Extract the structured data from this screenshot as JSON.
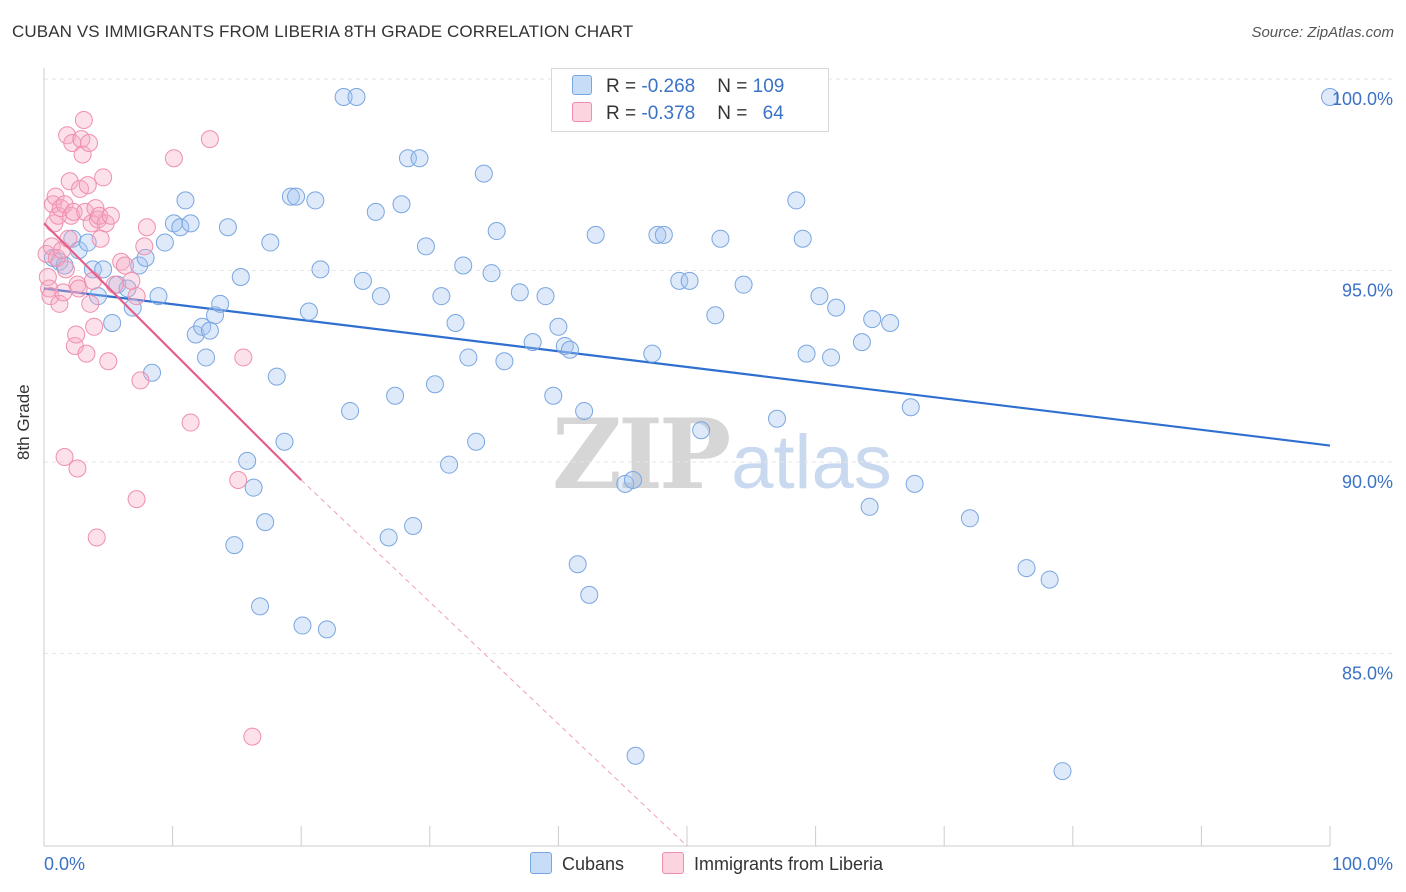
{
  "header": {
    "title": "CUBAN VS IMMIGRANTS FROM LIBERIA 8TH GRADE CORRELATION CHART",
    "source": "Source: ZipAtlas.com"
  },
  "watermark": {
    "zip": "ZIP",
    "atlas": "atlas"
  },
  "legend": {
    "rows": [
      {
        "r_label": "R = ",
        "r_value": "-0.268",
        "n_label": "N = ",
        "n_value": "109",
        "color": "#a9c7ef"
      },
      {
        "r_label": "R = ",
        "r_value": "-0.378",
        "n_label": "N = ",
        "n_value": "64",
        "color": "#f6b6c8"
      }
    ]
  },
  "bottom_legend": [
    {
      "label": "Cubans",
      "color": "#a9c7ef"
    },
    {
      "label": "Immigrants from Liberia",
      "color": "#f6b6c8"
    }
  ],
  "colors": {
    "blue_fill": "rgba(160,195,240,0.35)",
    "blue_stroke": "#7aa6e0",
    "blue_line": "#2f6fcf",
    "pink_fill": "rgba(246,170,195,0.35)",
    "pink_stroke": "#ef8fae",
    "pink_line": "#e4608c",
    "grid": "#e6e6e6",
    "tick_label": "#3b72c6"
  },
  "chart_data": {
    "type": "scatter",
    "title": "CUBAN VS IMMIGRANTS FROM LIBERIA 8TH GRADE CORRELATION CHART",
    "xlabel": "",
    "ylabel": "8th Grade",
    "xlim": [
      0,
      100
    ],
    "ylim": [
      80.5,
      101
    ],
    "x_tick_labels": [
      "0.0%",
      "100.0%"
    ],
    "y_ticks": [
      85,
      90,
      95,
      100
    ],
    "y_tick_labels": [
      "85.0%",
      "90.0%",
      "95.0%",
      "100.0%"
    ],
    "grid": true,
    "legend_position": "top-center",
    "series": [
      {
        "name": "Cubans",
        "r": -0.268,
        "n": 109,
        "trend": {
          "x": [
            0,
            100
          ],
          "y": [
            95.0,
            90.9
          ]
        },
        "points": [
          [
            0.7,
            95.8
          ],
          [
            1.2,
            95.7
          ],
          [
            1.6,
            95.6
          ],
          [
            2.2,
            96.3
          ],
          [
            2.7,
            96.0
          ],
          [
            3.4,
            96.2
          ],
          [
            3.8,
            95.5
          ],
          [
            4.2,
            94.8
          ],
          [
            4.6,
            95.5
          ],
          [
            5.3,
            94.1
          ],
          [
            5.7,
            95.1
          ],
          [
            6.5,
            95.0
          ],
          [
            6.9,
            94.5
          ],
          [
            7.4,
            95.6
          ],
          [
            7.9,
            95.8
          ],
          [
            8.4,
            92.8
          ],
          [
            8.9,
            94.8
          ],
          [
            9.4,
            96.2
          ],
          [
            10.1,
            96.7
          ],
          [
            10.6,
            96.6
          ],
          [
            11.0,
            97.3
          ],
          [
            11.4,
            96.7
          ],
          [
            11.8,
            93.8
          ],
          [
            12.3,
            94.0
          ],
          [
            12.6,
            93.2
          ],
          [
            12.9,
            93.9
          ],
          [
            13.3,
            94.3
          ],
          [
            13.7,
            94.6
          ],
          [
            14.3,
            96.6
          ],
          [
            14.8,
            88.3
          ],
          [
            15.3,
            95.3
          ],
          [
            15.8,
            90.5
          ],
          [
            16.3,
            89.8
          ],
          [
            16.8,
            86.7
          ],
          [
            17.2,
            88.9
          ],
          [
            17.6,
            96.2
          ],
          [
            18.1,
            92.7
          ],
          [
            18.7,
            91.0
          ],
          [
            19.2,
            97.4
          ],
          [
            19.6,
            97.4
          ],
          [
            20.1,
            86.2
          ],
          [
            20.6,
            94.4
          ],
          [
            21.1,
            97.3
          ],
          [
            21.5,
            95.5
          ],
          [
            22.0,
            86.1
          ],
          [
            23.3,
            100.0
          ],
          [
            23.8,
            91.8
          ],
          [
            24.3,
            100.0
          ],
          [
            24.8,
            95.2
          ],
          [
            25.8,
            97.0
          ],
          [
            26.2,
            94.8
          ],
          [
            26.8,
            88.5
          ],
          [
            27.3,
            92.2
          ],
          [
            27.8,
            97.2
          ],
          [
            28.3,
            98.4
          ],
          [
            28.7,
            88.8
          ],
          [
            29.2,
            98.4
          ],
          [
            29.7,
            96.1
          ],
          [
            30.4,
            92.5
          ],
          [
            30.9,
            94.8
          ],
          [
            31.5,
            90.4
          ],
          [
            32.0,
            94.1
          ],
          [
            32.6,
            95.6
          ],
          [
            33.0,
            93.2
          ],
          [
            33.6,
            91.0
          ],
          [
            34.2,
            98.0
          ],
          [
            34.8,
            95.4
          ],
          [
            35.2,
            96.5
          ],
          [
            35.8,
            93.1
          ],
          [
            37.0,
            94.9
          ],
          [
            38.0,
            93.6
          ],
          [
            39.0,
            94.8
          ],
          [
            39.6,
            92.2
          ],
          [
            40.0,
            94.0
          ],
          [
            40.5,
            93.5
          ],
          [
            40.9,
            93.4
          ],
          [
            41.5,
            87.8
          ],
          [
            42.0,
            91.8
          ],
          [
            42.4,
            87.0
          ],
          [
            42.9,
            96.4
          ],
          [
            45.2,
            89.9
          ],
          [
            45.8,
            90.0
          ],
          [
            46.0,
            82.8
          ],
          [
            47.3,
            93.3
          ],
          [
            47.7,
            96.4
          ],
          [
            48.2,
            96.4
          ],
          [
            49.4,
            95.2
          ],
          [
            50.2,
            95.2
          ],
          [
            51.1,
            91.3
          ],
          [
            52.2,
            94.3
          ],
          [
            52.6,
            96.3
          ],
          [
            54.4,
            95.1
          ],
          [
            57.0,
            91.6
          ],
          [
            58.5,
            97.3
          ],
          [
            59.0,
            96.3
          ],
          [
            59.3,
            93.3
          ],
          [
            60.3,
            94.8
          ],
          [
            61.2,
            93.2
          ],
          [
            61.6,
            94.5
          ],
          [
            63.6,
            93.6
          ],
          [
            64.2,
            89.3
          ],
          [
            64.4,
            94.2
          ],
          [
            65.8,
            94.1
          ],
          [
            67.4,
            91.9
          ],
          [
            67.7,
            89.9
          ],
          [
            72.0,
            89.0
          ],
          [
            76.4,
            87.7
          ],
          [
            78.2,
            87.4
          ],
          [
            79.2,
            82.4
          ],
          [
            100.0,
            100.0
          ]
        ]
      },
      {
        "name": "Immigrants from Liberia",
        "r": -0.378,
        "n": 64,
        "trend": {
          "x": [
            0,
            20
          ],
          "y": [
            96.7,
            90.0
          ]
        },
        "trend_dashed_extension": {
          "x": [
            20,
            50
          ],
          "y": [
            90.0,
            80.0
          ]
        },
        "points": [
          [
            0.2,
            95.9
          ],
          [
            0.3,
            95.3
          ],
          [
            0.4,
            95.0
          ],
          [
            0.5,
            94.8
          ],
          [
            0.6,
            96.1
          ],
          [
            0.7,
            97.2
          ],
          [
            0.8,
            96.7
          ],
          [
            0.9,
            97.4
          ],
          [
            1.0,
            95.8
          ],
          [
            1.1,
            96.9
          ],
          [
            1.2,
            94.6
          ],
          [
            1.3,
            97.1
          ],
          [
            1.4,
            96.0
          ],
          [
            1.5,
            94.9
          ],
          [
            1.6,
            97.2
          ],
          [
            1.7,
            95.5
          ],
          [
            1.8,
            99.0
          ],
          [
            1.9,
            96.3
          ],
          [
            2.0,
            97.8
          ],
          [
            2.1,
            96.9
          ],
          [
            2.2,
            98.8
          ],
          [
            2.3,
            97.0
          ],
          [
            2.4,
            93.5
          ],
          [
            2.5,
            93.8
          ],
          [
            2.6,
            95.1
          ],
          [
            2.7,
            95.0
          ],
          [
            2.8,
            97.6
          ],
          [
            2.9,
            98.9
          ],
          [
            3.0,
            98.5
          ],
          [
            3.1,
            99.4
          ],
          [
            3.2,
            97.0
          ],
          [
            3.3,
            93.3
          ],
          [
            3.4,
            97.7
          ],
          [
            3.5,
            98.8
          ],
          [
            3.6,
            94.6
          ],
          [
            3.7,
            96.7
          ],
          [
            3.8,
            95.2
          ],
          [
            3.9,
            94.0
          ],
          [
            4.0,
            97.1
          ],
          [
            4.1,
            88.5
          ],
          [
            4.2,
            96.8
          ],
          [
            4.3,
            96.9
          ],
          [
            4.4,
            96.3
          ],
          [
            4.6,
            97.9
          ],
          [
            4.8,
            96.7
          ],
          [
            5.0,
            93.1
          ],
          [
            5.2,
            96.9
          ],
          [
            5.5,
            95.1
          ],
          [
            6.0,
            95.7
          ],
          [
            6.3,
            95.6
          ],
          [
            6.8,
            95.2
          ],
          [
            7.2,
            94.8
          ],
          [
            7.5,
            92.6
          ],
          [
            7.8,
            96.1
          ],
          [
            8.0,
            96.6
          ],
          [
            10.1,
            98.4
          ],
          [
            11.4,
            91.5
          ],
          [
            12.9,
            98.9
          ],
          [
            15.1,
            90.0
          ],
          [
            16.2,
            83.3
          ],
          [
            1.6,
            90.6
          ],
          [
            2.6,
            90.3
          ],
          [
            7.2,
            89.5
          ],
          [
            15.5,
            93.2
          ]
        ]
      }
    ]
  }
}
